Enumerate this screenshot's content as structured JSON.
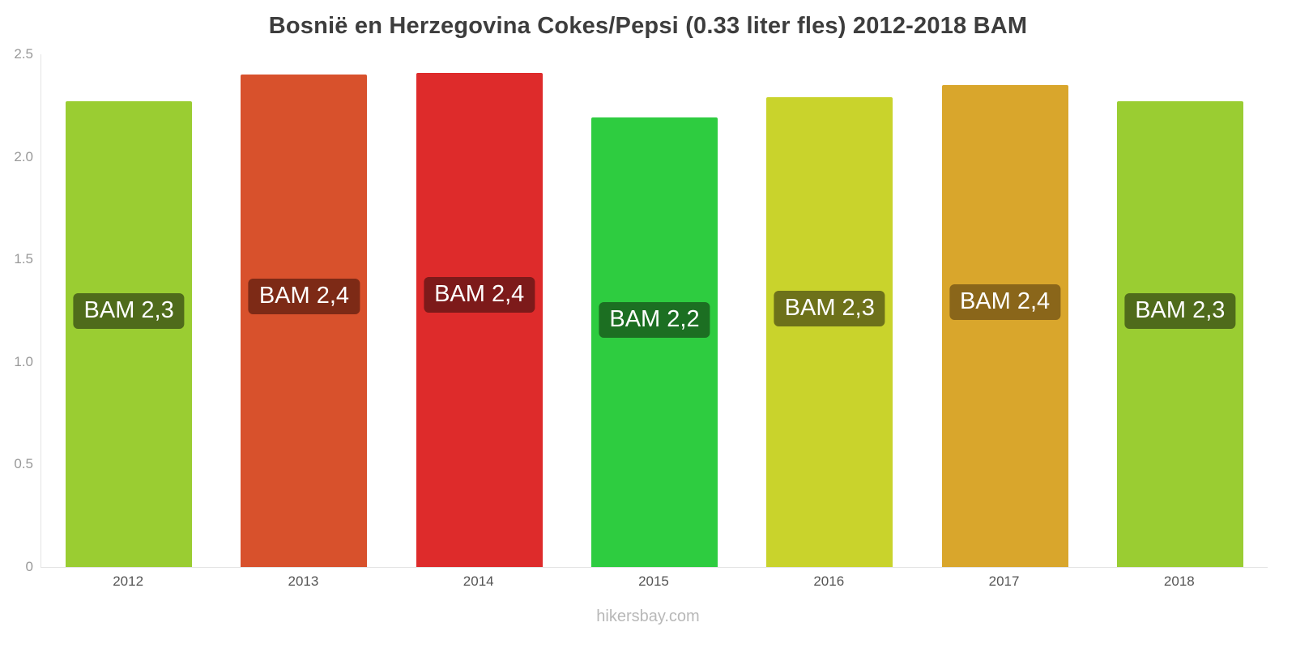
{
  "title": "Bosnië en Herzegovina Cokes/Pepsi (0.33 liter fles) 2012-2018 BAM",
  "footer": "hikersbay.com",
  "chart_data": {
    "type": "bar",
    "title": "Bosnië en Herzegovina Cokes/Pepsi (0.33 liter fles) 2012-2018 BAM",
    "categories": [
      "2012",
      "2013",
      "2014",
      "2015",
      "2016",
      "2017",
      "2018"
    ],
    "values": [
      2.27,
      2.4,
      2.41,
      2.19,
      2.29,
      2.35,
      2.27
    ],
    "bar_labels": [
      "BAM 2,3",
      "BAM 2,4",
      "BAM 2,4",
      "BAM 2,2",
      "BAM 2,3",
      "BAM 2,4",
      "BAM 2,3"
    ],
    "bar_colors": [
      "#9acd32",
      "#d8512c",
      "#de2b2b",
      "#2ecc40",
      "#c9d32c",
      "#d9a62c",
      "#9acd32"
    ],
    "label_bg_colors": [
      "#4f6b1b",
      "#7d2a16",
      "#7d1a1a",
      "#1c6f22",
      "#6d711a",
      "#8a661a",
      "#4f6b1b"
    ],
    "xlabel": "",
    "ylabel": "",
    "ylim": [
      0,
      2.5
    ],
    "yticks": [
      0,
      0.5,
      1.0,
      1.5,
      2.0,
      2.5
    ],
    "ytick_labels": [
      "0",
      "0.5",
      "1.0",
      "1.5",
      "2.0",
      "2.5"
    ],
    "grid": false,
    "legend": false
  }
}
